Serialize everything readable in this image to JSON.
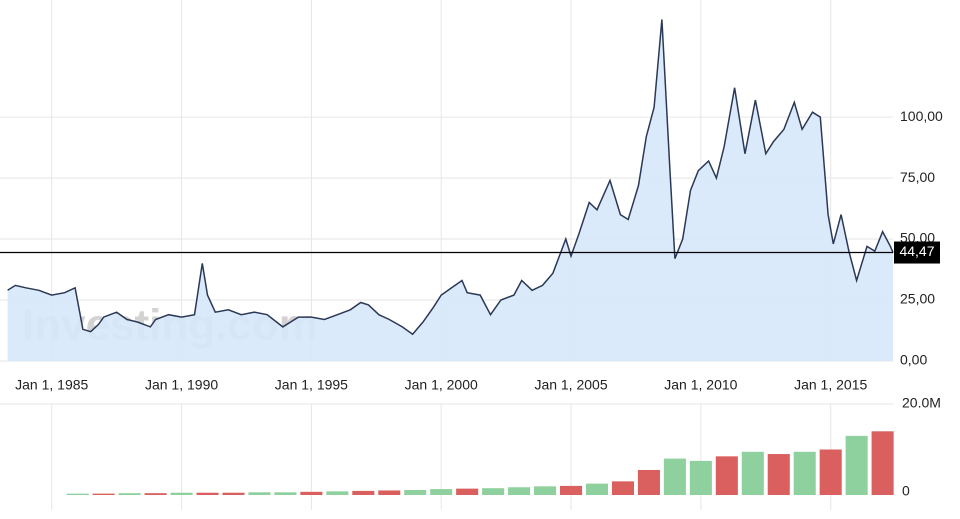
{
  "chart_data": [
    {
      "type": "area",
      "watermark": "Investing.com",
      "x": [
        1983.3,
        1983.6,
        1984,
        1984.5,
        1985,
        1985.5,
        1985.9,
        1986.2,
        1986.5,
        1986.8,
        1987,
        1987.5,
        1987.9,
        1988.3,
        1988.8,
        1989,
        1989.5,
        1990,
        1990.5,
        1990.8,
        1991,
        1991.3,
        1991.8,
        1992.3,
        1992.8,
        1993.3,
        1993.9,
        1994.5,
        1995,
        1995.5,
        1996,
        1996.5,
        1996.9,
        1997.2,
        1997.6,
        1998,
        1998.5,
        1998.9,
        1999.3,
        1999.7,
        2000,
        2000.4,
        2000.8,
        2001,
        2001.5,
        2001.9,
        2002.3,
        2002.8,
        2003.1,
        2003.5,
        2003.9,
        2004.3,
        2004.8,
        2005,
        2005.3,
        2005.7,
        2006,
        2006.5,
        2006.9,
        2007.2,
        2007.6,
        2007.9,
        2008.2,
        2008.5,
        2008.8,
        2009,
        2009.3,
        2009.6,
        2009.9,
        2010.3,
        2010.6,
        2010.9,
        2011.3,
        2011.7,
        2012.1,
        2012.5,
        2012.8,
        2013.2,
        2013.6,
        2013.9,
        2014.3,
        2014.6,
        2014.9,
        2015.1,
        2015.4,
        2015.7,
        2016,
        2016.4,
        2016.7,
        2017,
        2017.3,
        2017.4
      ],
      "values": [
        29,
        31,
        30,
        29,
        27,
        28,
        30,
        13,
        12,
        15,
        18,
        20,
        17,
        16,
        14,
        17,
        19,
        18,
        19,
        40,
        27,
        20,
        21,
        19,
        20,
        19,
        14,
        18,
        18,
        17,
        19,
        21,
        24,
        23,
        19,
        17,
        14,
        11,
        16,
        22,
        27,
        30,
        33,
        28,
        27,
        19,
        25,
        27,
        33,
        29,
        31,
        36,
        50,
        43,
        52,
        65,
        62,
        74,
        60,
        58,
        72,
        92,
        104,
        140,
        80,
        42,
        50,
        70,
        78,
        82,
        75,
        88,
        112,
        85,
        107,
        85,
        90,
        95,
        106,
        95,
        102,
        100,
        60,
        48,
        60,
        45,
        33,
        47,
        45,
        53,
        47,
        44.47
      ],
      "color": "#2b3856",
      "fill": "#d6e8fb",
      "xlim": [
        1983.2,
        2017.4
      ],
      "ylim": [
        0,
        148
      ],
      "xticks": [
        {
          "value": 1985,
          "label": "Jan 1, 1985"
        },
        {
          "value": 1990,
          "label": "Jan 1, 1990"
        },
        {
          "value": 1995,
          "label": "Jan 1, 1995"
        },
        {
          "value": 2000,
          "label": "Jan 1, 2000"
        },
        {
          "value": 2005,
          "label": "Jan 1, 2005"
        },
        {
          "value": 2010,
          "label": "Jan 1, 2010"
        },
        {
          "value": 2015,
          "label": "Jan 1, 2015"
        }
      ],
      "yticks": [
        {
          "value": 0,
          "label": "0,00"
        },
        {
          "value": 25,
          "label": "25,00"
        },
        {
          "value": 50,
          "label": "50,00"
        },
        {
          "value": 75,
          "label": "75,00"
        },
        {
          "value": 100,
          "label": "100,00"
        }
      ],
      "last": {
        "value": 44.47,
        "label": "44,47"
      },
      "grid": true
    },
    {
      "type": "bar",
      "x": [
        1986,
        1987,
        1988,
        1989,
        1990,
        1991,
        1992,
        1993,
        1994,
        1995,
        1996,
        1997,
        1998,
        1999,
        2000,
        2001,
        2002,
        2003,
        2004,
        2005,
        2006,
        2007,
        2008,
        2009,
        2010,
        2011,
        2012,
        2013,
        2014,
        2015,
        2016,
        2017
      ],
      "values": [
        0.3,
        0.3,
        0.4,
        0.4,
        0.5,
        0.5,
        0.5,
        0.6,
        0.6,
        0.7,
        0.8,
        0.9,
        1.0,
        1.1,
        1.3,
        1.4,
        1.5,
        1.7,
        1.9,
        2.0,
        2.5,
        3.0,
        5.5,
        8.0,
        7.5,
        8.5,
        9.5,
        9,
        9.5,
        10,
        13,
        14
      ],
      "up": [
        true,
        false,
        true,
        false,
        true,
        false,
        false,
        true,
        true,
        false,
        true,
        false,
        false,
        true,
        true,
        false,
        true,
        true,
        true,
        false,
        true,
        false,
        false,
        true,
        true,
        false,
        true,
        false,
        true,
        false,
        true,
        false
      ],
      "up_color": "#8fd19e",
      "down_color": "#d9605e",
      "xlim": [
        1983.2,
        2017.4
      ],
      "ylim": [
        0,
        20
      ],
      "yticks": [
        {
          "value": 20,
          "label": "20.0M"
        },
        0
      ]
    }
  ]
}
